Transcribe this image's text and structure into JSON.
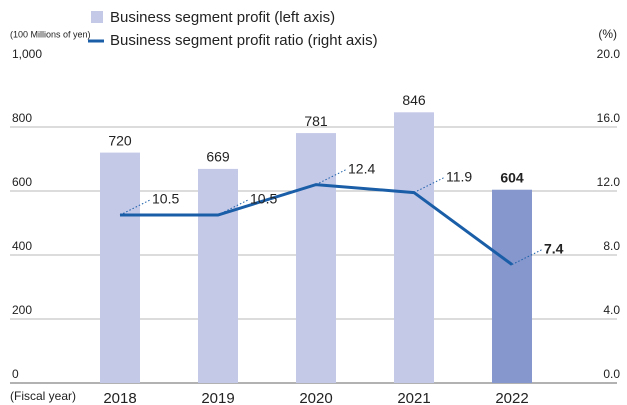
{
  "chart_data": {
    "type": "bar_line",
    "left_axis_unit": "(100 Millions of yen)",
    "right_axis_unit": "(%)",
    "x_axis_label": "(Fiscal year)",
    "categories": [
      "2018",
      "2019",
      "2020",
      "2021",
      "2022"
    ],
    "series": [
      {
        "name": "Business segment profit (left axis)",
        "type": "bar",
        "color": "#c5c9e8",
        "colors": [
          "#c5c9e8",
          "#c5c9e8",
          "#c5c9e8",
          "#c5c9e8",
          "#8597cc"
        ],
        "values": [
          720,
          669,
          781,
          846,
          604
        ]
      },
      {
        "name": "Business segment profit ratio (right axis)",
        "type": "line",
        "axis": "y2",
        "color": "#1a5ea8",
        "values": [
          10.5,
          10.5,
          12.4,
          11.9,
          7.4
        ]
      }
    ],
    "ylim": [
      0,
      1000
    ],
    "yticks": [
      0,
      200,
      400,
      600,
      800,
      {
        "value": 1000,
        "label": "1,000"
      }
    ],
    "y2lim": [
      0,
      20
    ],
    "y2ticks": [
      {
        "value": 0,
        "label": "0.0"
      },
      {
        "value": 4,
        "label": "4.0"
      },
      {
        "value": 8,
        "label": "8.0"
      },
      {
        "value": 12,
        "label": "12.0"
      },
      {
        "value": 16,
        "label": "16.0"
      },
      {
        "value": 20,
        "label": "20.0"
      }
    ],
    "grid": true
  }
}
